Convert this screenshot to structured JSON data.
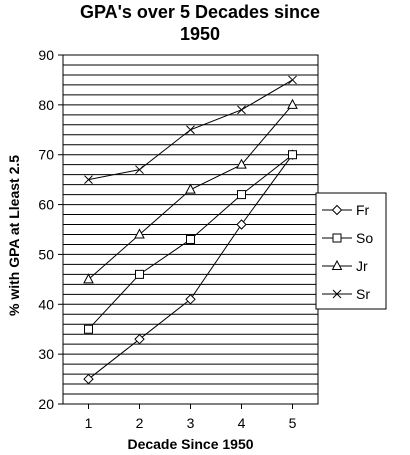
{
  "chart_data": {
    "type": "line",
    "title_line1": "GPA's over 5 Decades since",
    "title_line2": "1950",
    "xlabel": "Decade Since 1950",
    "ylabel": "% with GPA at Lleast 2.5",
    "x": [
      1,
      2,
      3,
      4,
      5
    ],
    "xlim": [
      0.5,
      5.5
    ],
    "ylim": [
      20,
      90
    ],
    "y_major_ticks": [
      20,
      30,
      40,
      50,
      60,
      70,
      80,
      90
    ],
    "y_grid_step": 2,
    "grid": true,
    "legend_position": "right",
    "series": [
      {
        "name": "Fr",
        "marker": "diamond",
        "values": [
          25,
          33,
          41,
          56,
          70
        ]
      },
      {
        "name": "So",
        "marker": "square",
        "values": [
          35,
          46,
          53,
          62,
          70
        ]
      },
      {
        "name": "Jr",
        "marker": "triangle",
        "values": [
          45,
          54,
          63,
          68,
          80
        ]
      },
      {
        "name": "Sr",
        "marker": "x",
        "values": [
          65,
          67,
          75,
          79,
          85
        ]
      }
    ]
  }
}
